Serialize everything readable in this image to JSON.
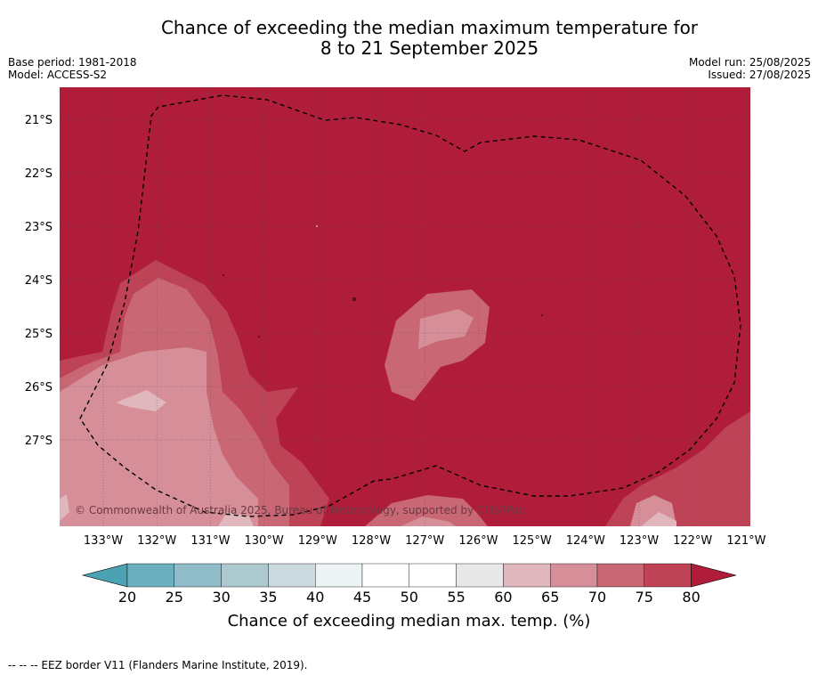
{
  "title_line1": "Chance of exceeding the median maximum temperature for",
  "title_line2": "8 to 21 September 2025",
  "base_period": "Base period: 1981-2018",
  "model": "Model: ACCESS-S2",
  "model_run": "Model run: 25/08/2025",
  "issued": "Issued: 27/08/2025",
  "copyright": "© Commonwealth of Australia 2025, Bureau of Meteorology, supported by COSPPac",
  "longitude_labels": [
    "133°W",
    "132°W",
    "131°W",
    "130°W",
    "129°W",
    "128°W",
    "127°W",
    "126°W",
    "125°W",
    "124°W",
    "123°W",
    "122°W",
    "121°W"
  ],
  "latitude_labels": [
    "21°S",
    "22°S",
    "23°S",
    "24°S",
    "25°S",
    "26°S",
    "27°S"
  ],
  "colorbar": {
    "ticks": [
      "20",
      "25",
      "30",
      "35",
      "40",
      "45",
      "50",
      "55",
      "60",
      "65",
      "70",
      "75",
      "80"
    ],
    "title": "Chance of exceeding median max. temp. (%)",
    "colors": [
      "#4aa2b2",
      "#6cb0c0",
      "#8fbcc8",
      "#adc9d0",
      "#cbdade",
      "#edf2f4",
      "#ffffff",
      "#ffffff",
      "#e8e8e8",
      "#e0b7bd",
      "#d68f98",
      "#c96774",
      "#be4356",
      "#b01d3a"
    ]
  },
  "footnote": "--  --  -- EEZ border V11 (Flanders Marine Institute, 2019)."
}
